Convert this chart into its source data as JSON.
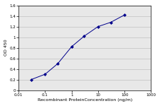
{
  "x": [
    0.03,
    0.1,
    0.3,
    1,
    3,
    10,
    30,
    100
  ],
  "y": [
    0.2,
    0.3,
    0.5,
    0.82,
    1.02,
    1.2,
    1.28,
    1.42
  ],
  "line_color": "#00008B",
  "marker": "D",
  "marker_size": 2.0,
  "marker_facecolor": "#00008B",
  "xlabel": "Recombinant ProteinConcentration (ng/m)",
  "ylabel": "OD 450",
  "xlim": [
    0.01,
    1000
  ],
  "ylim": [
    0,
    1.6
  ],
  "yticks": [
    0,
    0.2,
    0.4,
    0.6,
    0.8,
    1.0,
    1.2,
    1.4,
    1.6
  ],
  "ytick_labels": [
    "0",
    "0.2",
    "0.4",
    "0.6",
    "0.8",
    "1",
    "1.2",
    "1.4",
    "1.6"
  ],
  "xtick_values": [
    0.01,
    0.1,
    1,
    10,
    100,
    1000
  ],
  "xtick_labels": [
    "0.01",
    "0.1",
    "1",
    "10",
    "100",
    "1000"
  ],
  "grid_color": "#c0c0c0",
  "plot_bg_color": "#e8e8e8",
  "background_color": "#ffffff",
  "label_fontsize": 4.5,
  "tick_fontsize": 4.0,
  "linewidth": 0.7
}
